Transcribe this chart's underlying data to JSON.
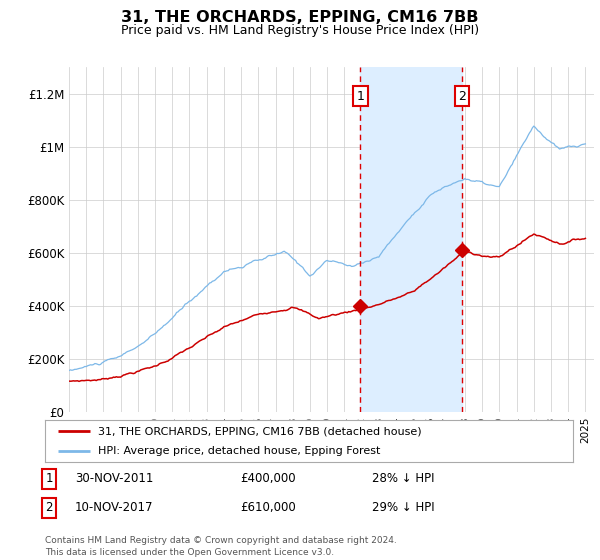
{
  "title": "31, THE ORCHARDS, EPPING, CM16 7BB",
  "subtitle": "Price paid vs. HM Land Registry's House Price Index (HPI)",
  "hpi_color": "#7db8e8",
  "price_color": "#cc0000",
  "sale1_date_label": "30-NOV-2011",
  "sale1_price": 400000,
  "sale1_pct": "28% ↓ HPI",
  "sale2_date_label": "10-NOV-2017",
  "sale2_price": 610000,
  "sale2_pct": "29% ↓ HPI",
  "legend_line1": "31, THE ORCHARDS, EPPING, CM16 7BB (detached house)",
  "legend_line2": "HPI: Average price, detached house, Epping Forest",
  "footnote1": "Contains HM Land Registry data © Crown copyright and database right 2024.",
  "footnote2": "This data is licensed under the Open Government Licence v3.0.",
  "ylim": [
    0,
    1300000
  ],
  "yticks": [
    0,
    200000,
    400000,
    600000,
    800000,
    1000000,
    1200000
  ],
  "ylabels": [
    "£0",
    "£200K",
    "£400K",
    "£600K",
    "£800K",
    "£1M",
    "£1.2M"
  ],
  "shade_color": "#ddeeff",
  "vline_color": "#dd0000",
  "grid_color": "#cccccc",
  "background_color": "#ffffff",
  "start_year": 1995,
  "end_year": 2025
}
